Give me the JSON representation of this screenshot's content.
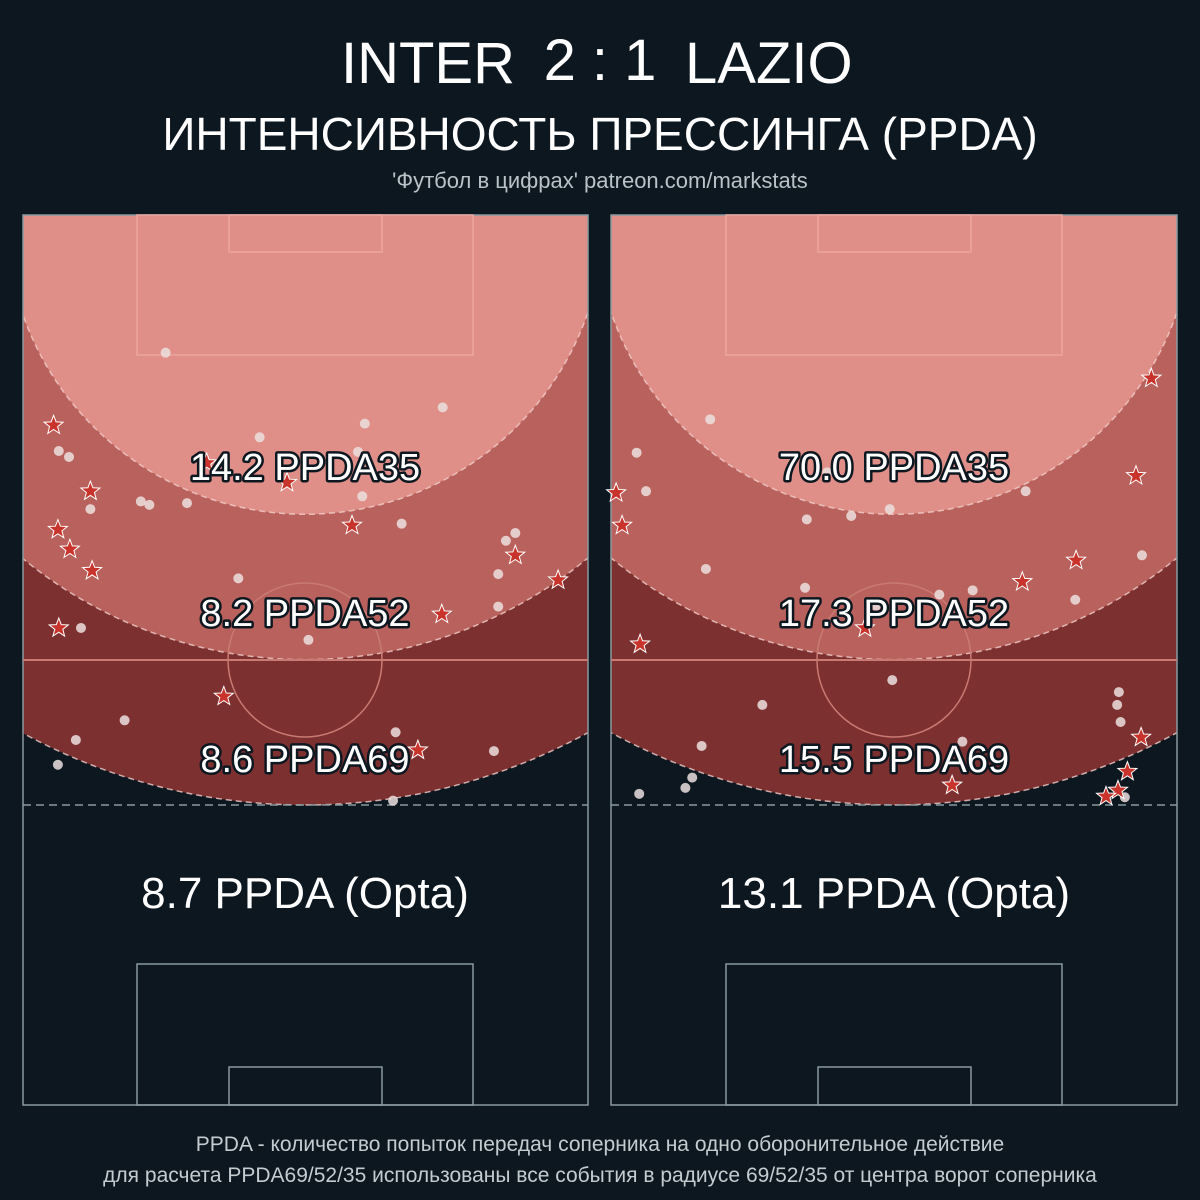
{
  "header": {
    "home_team": "INTER",
    "score": "2 : 1",
    "away_team": "LAZIO",
    "subtitle": "ИНТЕНСИВНОСТЬ ПРЕССИНГА (PPDA)",
    "credit": "'Футбол в цифрах' patreon.com/markstats"
  },
  "footer": {
    "line1": "PPDA - количество попыток передач соперника на одно оборонительное действие",
    "line2": "для расчета PPDA69/52/35 использованы все события в радиусе 69/52/35 от центра ворот соперника"
  },
  "colors": {
    "background": "#0d1720",
    "zone35": "#df8f87",
    "zone52": "#b9625d",
    "zone69": "#7d3030",
    "pitch_lines": "#8a9aa0",
    "star": "#c8342c",
    "dot": "#ece0df"
  },
  "chart_data": [
    {
      "type": "scatter",
      "team": "INTER",
      "units": "meters from centre of opponent goal (x lateral, y distance)",
      "zone_radii": [
        35,
        52,
        69
      ],
      "labels": {
        "ppda35": "14.2 PPDA35",
        "ppda52": "8.2 PPDA52",
        "ppda69": "8.6 PPDA69",
        "opta": "8.7 PPDA (Opta)"
      },
      "dots": [
        [
          -16.3,
          16.1
        ],
        [
          16.1,
          22.5
        ],
        [
          7.0,
          24.4
        ],
        [
          -5.3,
          26.0
        ],
        [
          -28.8,
          27.6
        ],
        [
          -27.6,
          28.3
        ],
        [
          6.2,
          27.7
        ],
        [
          6.7,
          32.9
        ],
        [
          -19.2,
          33.5
        ],
        [
          -18.2,
          33.9
        ],
        [
          -13.8,
          33.7
        ],
        [
          -25.1,
          34.4
        ],
        [
          11.3,
          36.1
        ],
        [
          24.6,
          37.2
        ],
        [
          23.5,
          38.1
        ],
        [
          -7.8,
          42.5
        ],
        [
          22.6,
          42.0
        ],
        [
          22.6,
          45.8
        ],
        [
          -26.2,
          48.3
        ],
        [
          0.4,
          49.7
        ],
        [
          -21.1,
          59.1
        ],
        [
          -26.8,
          61.4
        ],
        [
          10.6,
          60.5
        ],
        [
          22.1,
          62.7
        ],
        [
          -28.9,
          64.3
        ],
        [
          10.3,
          68.5
        ]
      ],
      "stars": [
        [
          -29.4,
          24.6
        ],
        [
          -11.5,
          29.0
        ],
        [
          -2.1,
          31.3
        ],
        [
          -25.1,
          32.3
        ],
        [
          5.5,
          36.3
        ],
        [
          -28.9,
          36.8
        ],
        [
          -27.5,
          39.1
        ],
        [
          -24.9,
          41.6
        ],
        [
          24.6,
          39.8
        ],
        [
          29.6,
          42.7
        ],
        [
          16.0,
          46.7
        ],
        [
          -28.8,
          48.3
        ],
        [
          -9.5,
          56.3
        ],
        [
          13.2,
          62.6
        ]
      ]
    },
    {
      "type": "scatter",
      "team": "LAZIO",
      "units": "meters from centre of opponent goal (x lateral, y distance)",
      "zone_radii": [
        35,
        52,
        69
      ],
      "labels": {
        "ppda35": "70.0 PPDA35",
        "ppda52": "17.3 PPDA52",
        "ppda69": "15.5 PPDA69",
        "opta": "13.1 PPDA (Opta)"
      },
      "dots": [
        [
          -21.5,
          23.9
        ],
        [
          -30.1,
          27.8
        ],
        [
          -29.0,
          32.3
        ],
        [
          15.4,
          32.3
        ],
        [
          -10.2,
          35.6
        ],
        [
          -5.0,
          35.2
        ],
        [
          -0.5,
          34.4
        ],
        [
          -7.8,
          30.1
        ],
        [
          29.0,
          39.8
        ],
        [
          -22.0,
          41.4
        ],
        [
          -10.4,
          43.6
        ],
        [
          5.3,
          44.4
        ],
        [
          9.2,
          43.9
        ],
        [
          21.2,
          45.0
        ],
        [
          -2.1,
          45.7
        ],
        [
          -0.2,
          54.4
        ],
        [
          -15.4,
          57.3
        ],
        [
          26.3,
          55.8
        ],
        [
          26.1,
          57.3
        ],
        [
          26.5,
          59.3
        ],
        [
          -22.5,
          62.1
        ],
        [
          8.0,
          61.6
        ],
        [
          -23.6,
          65.8
        ],
        [
          -24.4,
          67.0
        ],
        [
          -29.8,
          67.7
        ],
        [
          27.0,
          68.1
        ]
      ],
      "stars": [
        [
          30.1,
          19.1
        ],
        [
          28.3,
          30.5
        ],
        [
          -32.5,
          32.5
        ],
        [
          -31.8,
          36.3
        ],
        [
          21.3,
          40.4
        ],
        [
          15.0,
          42.9
        ],
        [
          -3.4,
          48.3
        ],
        [
          -29.7,
          50.2
        ],
        [
          28.9,
          61.1
        ],
        [
          6.8,
          66.7
        ],
        [
          27.3,
          65.1
        ],
        [
          26.2,
          67.3
        ],
        [
          24.8,
          68.0
        ]
      ]
    }
  ]
}
